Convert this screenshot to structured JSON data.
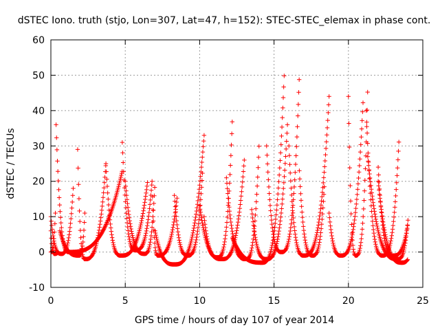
{
  "chart_data": {
    "type": "scatter",
    "title": "dSTEC Iono. truth (stjo, Lon=307, Lat=47, h=152): STEC-STEC_elemax in phase cont.",
    "xlabel": "GPS time / hours of day 107 of year 2014",
    "ylabel": "dSTEC  / TECUs",
    "xlim": [
      0,
      25
    ],
    "ylim": [
      -10,
      60
    ],
    "xticks": [
      0,
      5,
      10,
      15,
      20,
      25
    ],
    "yticks": [
      -10,
      0,
      10,
      20,
      30,
      40,
      50,
      60
    ],
    "grid": true,
    "marker": "+",
    "color": "#ff0000",
    "arcs": [
      {
        "t0": 0.0,
        "tp": 0.0,
        "t1": 0.3,
        "peakL": 0,
        "peakR": 11,
        "min": 0
      },
      {
        "t0": 0.0,
        "tp": 0.25,
        "t1": 0.5,
        "peakL": 6,
        "peakR": 0,
        "min": -0.5
      },
      {
        "t0": 0.0,
        "tp": 0.7,
        "t1": 1.5,
        "peakL": 10,
        "peakR": 18,
        "min": -0.5
      },
      {
        "t0": 0.35,
        "tp": 1.2,
        "t1": 4.8,
        "peakL": 36,
        "peakR": 23,
        "min": 0
      },
      {
        "t0": 0.6,
        "tp": 1.9,
        "t1": 2.3,
        "peakL": 6,
        "peakR": 13,
        "min": -1
      },
      {
        "t0": 1.8,
        "tp": 2.3,
        "t1": 3.7,
        "peakL": 29,
        "peakR": 25,
        "min": -2
      },
      {
        "t0": 3.7,
        "tp": 4.7,
        "t1": 6.5,
        "peakL": 25,
        "peakR": 20,
        "min": -1
      },
      {
        "t0": 4.8,
        "tp": 5.7,
        "t1": 6.8,
        "peakL": 31,
        "peakR": 20,
        "min": 0.5
      },
      {
        "t0": 5.0,
        "tp": 6.3,
        "t1": 7.0,
        "peakL": 20,
        "peakR": 20,
        "min": -0.5
      },
      {
        "t0": 6.8,
        "tp": 7.2,
        "t1": 8.5,
        "peakL": 20,
        "peakR": 16,
        "min": -1
      },
      {
        "t0": 7.0,
        "tp": 8.3,
        "t1": 10.3,
        "peakL": 6,
        "peakR": 33,
        "min": -3.5
      },
      {
        "t0": 8.3,
        "tp": 9.2,
        "t1": 10.2,
        "peakL": 16,
        "peakR": 23,
        "min": -1
      },
      {
        "t0": 10.3,
        "tp": 11.2,
        "t1": 12.2,
        "peakL": 10,
        "peakR": 38,
        "min": -1.5
      },
      {
        "t0": 10.0,
        "tp": 11.5,
        "t1": 13.0,
        "peakL": 13,
        "peakR": 26,
        "min": -2
      },
      {
        "t0": 11.8,
        "tp": 13.1,
        "t1": 14.0,
        "peakL": 21,
        "peakR": 31,
        "min": -2
      },
      {
        "t0": 12.2,
        "tp": 14.2,
        "t1": 15.7,
        "peakL": 4,
        "peakR": 52,
        "min": -3
      },
      {
        "t0": 13.5,
        "tp": 14.5,
        "t1": 15.9,
        "peakL": 12,
        "peakR": 36,
        "min": -2
      },
      {
        "t0": 14.5,
        "tp": 15.5,
        "t1": 16.7,
        "peakL": 30,
        "peakR": 50,
        "min": 0
      },
      {
        "t0": 16.0,
        "tp": 17.0,
        "t1": 18.7,
        "peakL": 30,
        "peakR": 44,
        "min": -1
      },
      {
        "t0": 16.7,
        "tp": 17.6,
        "t1": 18.4,
        "peakL": 23,
        "peakR": 20,
        "min": -1
      },
      {
        "t0": 18.7,
        "tp": 19.5,
        "t1": 21.0,
        "peakL": 11,
        "peakR": 44,
        "min": -1
      },
      {
        "t0": 20.0,
        "tp": 20.5,
        "t1": 21.3,
        "peakL": 44,
        "peakR": 47,
        "min": -1
      },
      {
        "t0": 21.2,
        "tp": 22.3,
        "t1": 23.4,
        "peakL": 40,
        "peakR": 32,
        "min": -1
      },
      {
        "t0": 21.3,
        "tp": 23.3,
        "t1": 24.0,
        "peakL": 27,
        "peakR": 9,
        "min": -2
      },
      {
        "t0": 22.0,
        "tp": 23.0,
        "t1": 24.0,
        "peakL": 24,
        "peakR": 8,
        "min": -1
      },
      {
        "t0": 22.0,
        "tp": 23.6,
        "t1": 24.0,
        "peakL": 20,
        "peakR": -2,
        "min": -3
      }
    ]
  }
}
